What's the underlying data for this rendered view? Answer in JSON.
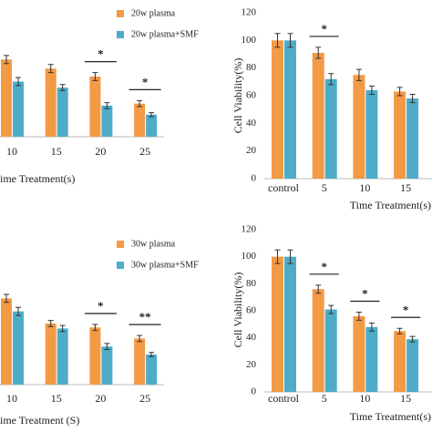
{
  "chart_data": [
    {
      "type": "bar",
      "x_label": "ime Treatment(s)",
      "categories": [
        "10",
        "15",
        "20",
        "25"
      ],
      "ylim": [
        0,
        120
      ],
      "legend": "top-right",
      "series": [
        {
          "name": "20w plasma",
          "color": "#f39a45",
          "values": [
            77,
            68,
            60,
            33
          ],
          "errors": [
            4,
            4,
            4,
            3
          ]
        },
        {
          "name": "20w plasma+SMF",
          "color": "#4eacc8",
          "values": [
            55,
            49,
            31,
            22
          ],
          "errors": [
            4,
            3,
            3,
            2
          ]
        }
      ],
      "annotations": [
        {
          "text": "*",
          "x": "20"
        },
        {
          "text": "*",
          "x": "25"
        }
      ]
    },
    {
      "type": "bar",
      "y_label": "Cell Viability(%)",
      "x_label": "Time Treatment(s)",
      "categories": [
        "control",
        "5",
        "10",
        "15"
      ],
      "ylim": [
        0,
        120
      ],
      "yticks": [
        0,
        20,
        40,
        60,
        80,
        100,
        120
      ],
      "series": [
        {
          "color": "#f39a45",
          "values": [
            100,
            91,
            75,
            63
          ],
          "errors": [
            5,
            4,
            4,
            3
          ]
        },
        {
          "color": "#4eacc8",
          "values": [
            100,
            72,
            64,
            58
          ],
          "errors": [
            5,
            4,
            3,
            3
          ]
        }
      ],
      "annotations": [
        {
          "text": "*",
          "x": "5"
        }
      ]
    },
    {
      "type": "bar",
      "x_label": "ime Treatment (S)",
      "categories": [
        "10",
        "15",
        "20",
        "25"
      ],
      "ylim": [
        0,
        120
      ],
      "legend": "top-right",
      "series": [
        {
          "name": "30w plasma",
          "color": "#f39a45",
          "values": [
            86,
            61,
            57,
            46
          ],
          "errors": [
            4,
            3,
            3,
            3
          ]
        },
        {
          "name": "30w plasma+SMF",
          "color": "#4eacc8",
          "values": [
            73,
            56,
            38,
            30
          ],
          "errors": [
            4,
            3,
            3,
            2
          ]
        }
      ],
      "annotations": [
        {
          "text": "*",
          "x": "20"
        },
        {
          "text": "**",
          "x": "25"
        }
      ]
    },
    {
      "type": "bar",
      "y_label": "Cell Viability(%)",
      "x_label": "Time Treatment(s)",
      "categories": [
        "control",
        "5",
        "10",
        "15"
      ],
      "ylim": [
        0,
        120
      ],
      "yticks": [
        0,
        20,
        40,
        60,
        80,
        100,
        120
      ],
      "series": [
        {
          "color": "#f39a45",
          "values": [
            100,
            76,
            56,
            45
          ],
          "errors": [
            5,
            3,
            3,
            2
          ]
        },
        {
          "color": "#4eacc8",
          "values": [
            100,
            61,
            48,
            39
          ],
          "errors": [
            5,
            3,
            3,
            2
          ]
        }
      ],
      "annotations": [
        {
          "text": "*",
          "x": "5"
        },
        {
          "text": "*",
          "x": "10"
        },
        {
          "text": "*",
          "x": "15"
        }
      ]
    }
  ]
}
